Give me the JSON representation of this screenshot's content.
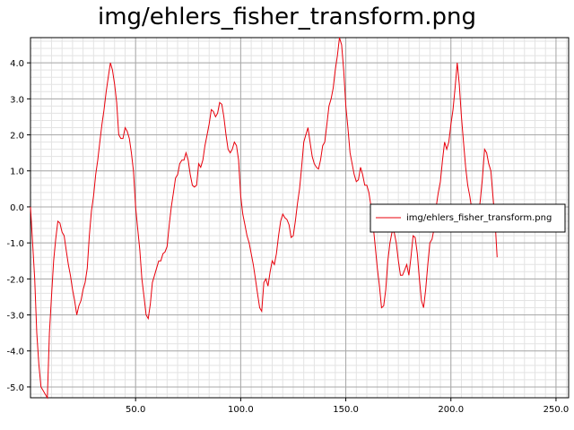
{
  "title": "img/ehlers_fisher_transform.png",
  "chart_data": {
    "type": "line",
    "title": "img/ehlers_fisher_transform.png",
    "xlabel": "",
    "ylabel": "",
    "xlim": [
      0,
      256
    ],
    "ylim": [
      -5.3,
      4.7
    ],
    "grid": true,
    "legend_position": "center-right",
    "x_ticks": [
      50.0,
      100.0,
      150.0,
      200.0,
      250.0
    ],
    "x_tick_labels": [
      "50.0",
      "100.0",
      "150.0",
      "200.0",
      "250.0"
    ],
    "y_ticks": [
      4.0,
      3.0,
      2.0,
      1.0,
      0.0,
      -1.0,
      -2.0,
      -3.0,
      -4.0,
      -5.0
    ],
    "y_tick_labels": [
      "4.0",
      "3.0",
      "2.0",
      "1.0",
      "0.0",
      "-1.0",
      "-2.0",
      "-3.0",
      "-4.0",
      "-5.0"
    ],
    "series": [
      {
        "name": "img/ehlers_fisher_transform.png",
        "color": "#e8000b",
        "points": [
          [
            0,
            0.0
          ],
          [
            2,
            -2.0
          ],
          [
            3,
            -3.5
          ],
          [
            4,
            -4.4
          ],
          [
            5,
            -5.0
          ],
          [
            6,
            -5.1
          ],
          [
            7,
            -5.2
          ],
          [
            8,
            -5.3
          ],
          [
            9,
            -3.5
          ],
          [
            10,
            -2.5
          ],
          [
            11,
            -1.5
          ],
          [
            12,
            -0.9
          ],
          [
            13,
            -0.4
          ],
          [
            14,
            -0.45
          ],
          [
            15,
            -0.7
          ],
          [
            16,
            -0.8
          ],
          [
            17,
            -1.2
          ],
          [
            18,
            -1.6
          ],
          [
            19,
            -1.9
          ],
          [
            20,
            -2.3
          ],
          [
            21,
            -2.6
          ],
          [
            22,
            -3.0
          ],
          [
            23,
            -2.75
          ],
          [
            24,
            -2.6
          ],
          [
            25,
            -2.3
          ],
          [
            26,
            -2.1
          ],
          [
            27,
            -1.7
          ],
          [
            28,
            -0.8
          ],
          [
            29,
            -0.1
          ],
          [
            30,
            0.3
          ],
          [
            31,
            0.9
          ],
          [
            32,
            1.3
          ],
          [
            33,
            1.8
          ],
          [
            34,
            2.3
          ],
          [
            35,
            2.7
          ],
          [
            36,
            3.2
          ],
          [
            37,
            3.6
          ],
          [
            38,
            4.0
          ],
          [
            39,
            3.8
          ],
          [
            40,
            3.4
          ],
          [
            41,
            2.9
          ],
          [
            42,
            2.0
          ],
          [
            43,
            1.9
          ],
          [
            44,
            1.9
          ],
          [
            45,
            2.2
          ],
          [
            46,
            2.1
          ],
          [
            47,
            1.9
          ],
          [
            48,
            1.5
          ],
          [
            49,
            1.0
          ],
          [
            50,
            0.0
          ],
          [
            51,
            -0.6
          ],
          [
            52,
            -1.2
          ],
          [
            53,
            -2.0
          ],
          [
            54,
            -2.5
          ],
          [
            55,
            -3.0
          ],
          [
            56,
            -3.1
          ],
          [
            57,
            -2.7
          ],
          [
            58,
            -2.1
          ],
          [
            59,
            -1.9
          ],
          [
            60,
            -1.7
          ],
          [
            61,
            -1.5
          ],
          [
            62,
            -1.5
          ],
          [
            63,
            -1.3
          ],
          [
            64,
            -1.25
          ],
          [
            65,
            -1.1
          ],
          [
            66,
            -0.5
          ],
          [
            67,
            0.0
          ],
          [
            68,
            0.4
          ],
          [
            69,
            0.8
          ],
          [
            70,
            0.9
          ],
          [
            71,
            1.2
          ],
          [
            72,
            1.3
          ],
          [
            73,
            1.3
          ],
          [
            74,
            1.5
          ],
          [
            75,
            1.3
          ],
          [
            76,
            0.9
          ],
          [
            77,
            0.6
          ],
          [
            78,
            0.55
          ],
          [
            79,
            0.6
          ],
          [
            80,
            1.2
          ],
          [
            81,
            1.1
          ],
          [
            82,
            1.3
          ],
          [
            83,
            1.7
          ],
          [
            84,
            2.0
          ],
          [
            85,
            2.3
          ],
          [
            86,
            2.7
          ],
          [
            87,
            2.65
          ],
          [
            88,
            2.5
          ],
          [
            89,
            2.6
          ],
          [
            90,
            2.9
          ],
          [
            91,
            2.85
          ],
          [
            92,
            2.5
          ],
          [
            93,
            2.0
          ],
          [
            94,
            1.6
          ],
          [
            95,
            1.5
          ],
          [
            96,
            1.6
          ],
          [
            97,
            1.8
          ],
          [
            98,
            1.7
          ],
          [
            99,
            1.3
          ],
          [
            100,
            0.3
          ],
          [
            101,
            -0.2
          ],
          [
            102,
            -0.5
          ],
          [
            103,
            -0.8
          ],
          [
            104,
            -1.0
          ],
          [
            105,
            -1.3
          ],
          [
            106,
            -1.6
          ],
          [
            107,
            -2.0
          ],
          [
            108,
            -2.4
          ],
          [
            109,
            -2.8
          ],
          [
            110,
            -2.9
          ],
          [
            111,
            -2.1
          ],
          [
            112,
            -2.0
          ],
          [
            113,
            -2.2
          ],
          [
            114,
            -1.8
          ],
          [
            115,
            -1.5
          ],
          [
            116,
            -1.6
          ],
          [
            117,
            -1.3
          ],
          [
            118,
            -0.8
          ],
          [
            119,
            -0.4
          ],
          [
            120,
            -0.2
          ],
          [
            121,
            -0.3
          ],
          [
            122,
            -0.35
          ],
          [
            123,
            -0.5
          ],
          [
            124,
            -0.85
          ],
          [
            125,
            -0.8
          ],
          [
            126,
            -0.4
          ],
          [
            127,
            0.1
          ],
          [
            128,
            0.5
          ],
          [
            129,
            1.1
          ],
          [
            130,
            1.8
          ],
          [
            131,
            2.0
          ],
          [
            132,
            2.2
          ],
          [
            133,
            1.8
          ],
          [
            134,
            1.4
          ],
          [
            135,
            1.2
          ],
          [
            136,
            1.1
          ],
          [
            137,
            1.05
          ],
          [
            138,
            1.3
          ],
          [
            139,
            1.7
          ],
          [
            140,
            1.8
          ],
          [
            141,
            2.3
          ],
          [
            142,
            2.8
          ],
          [
            143,
            3.0
          ],
          [
            144,
            3.3
          ],
          [
            145,
            3.8
          ],
          [
            146,
            4.2
          ],
          [
            147,
            4.7
          ],
          [
            148,
            4.5
          ],
          [
            149,
            3.8
          ],
          [
            150,
            2.8
          ],
          [
            151,
            2.2
          ],
          [
            152,
            1.5
          ],
          [
            153,
            1.2
          ],
          [
            154,
            0.9
          ],
          [
            155,
            0.7
          ],
          [
            156,
            0.75
          ],
          [
            157,
            1.1
          ],
          [
            158,
            0.9
          ],
          [
            159,
            0.6
          ],
          [
            160,
            0.6
          ],
          [
            161,
            0.4
          ],
          [
            162,
            0.0
          ],
          [
            163,
            -0.5
          ],
          [
            164,
            -1.1
          ],
          [
            165,
            -1.7
          ],
          [
            166,
            -2.2
          ],
          [
            167,
            -2.8
          ],
          [
            168,
            -2.75
          ],
          [
            169,
            -2.3
          ],
          [
            170,
            -1.5
          ],
          [
            171,
            -1.0
          ],
          [
            172,
            -0.7
          ],
          [
            173,
            -0.7
          ],
          [
            174,
            -1.0
          ],
          [
            175,
            -1.5
          ],
          [
            176,
            -1.9
          ],
          [
            177,
            -1.9
          ],
          [
            178,
            -1.75
          ],
          [
            179,
            -1.6
          ],
          [
            180,
            -1.9
          ],
          [
            181,
            -1.4
          ],
          [
            182,
            -0.8
          ],
          [
            183,
            -0.85
          ],
          [
            184,
            -1.3
          ],
          [
            185,
            -2.0
          ],
          [
            186,
            -2.6
          ],
          [
            187,
            -2.8
          ],
          [
            188,
            -2.3
          ],
          [
            189,
            -1.6
          ],
          [
            190,
            -1.0
          ],
          [
            191,
            -0.9
          ],
          [
            192,
            -0.6
          ],
          [
            193,
            0.0
          ],
          [
            194,
            0.4
          ],
          [
            195,
            0.7
          ],
          [
            196,
            1.3
          ],
          [
            197,
            1.8
          ],
          [
            198,
            1.6
          ],
          [
            199,
            1.8
          ],
          [
            200,
            2.3
          ],
          [
            201,
            2.7
          ],
          [
            202,
            3.3
          ],
          [
            203,
            4.0
          ],
          [
            204,
            3.4
          ],
          [
            205,
            2.5
          ],
          [
            206,
            1.8
          ],
          [
            207,
            1.1
          ],
          [
            208,
            0.6
          ],
          [
            209,
            0.3
          ],
          [
            210,
            -0.1
          ],
          [
            211,
            -0.4
          ],
          [
            212,
            -0.5
          ],
          [
            213,
            -0.3
          ],
          [
            214,
            0.2
          ],
          [
            215,
            0.8
          ],
          [
            216,
            1.6
          ],
          [
            217,
            1.5
          ],
          [
            218,
            1.2
          ],
          [
            219,
            1.0
          ],
          [
            220,
            0.3
          ],
          [
            221,
            -0.4
          ],
          [
            222,
            -1.4
          ]
        ]
      }
    ]
  }
}
